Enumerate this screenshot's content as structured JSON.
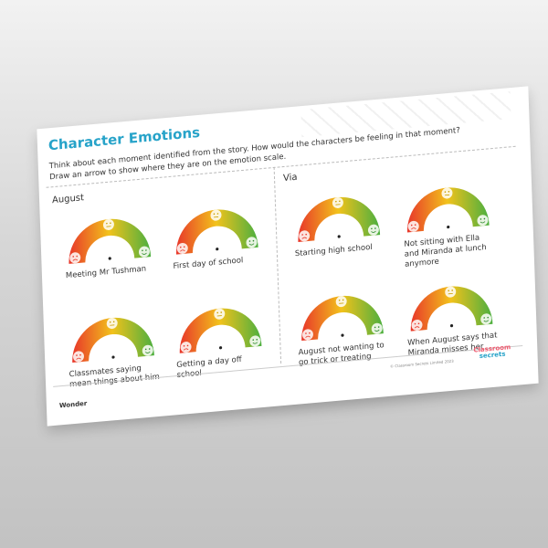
{
  "title": "Character Emotions",
  "instructions": "Think about each moment identified from the story. How would the characters be feeling in that moment? Draw an arrow to show where they are on the emotion scale.",
  "sections": [
    {
      "name": "August",
      "moments": [
        "Meeting Mr Tushman",
        "First day of school",
        "Classmates saying mean things about him",
        "Getting a day off school"
      ]
    },
    {
      "name": "Via",
      "moments": [
        "Starting high school",
        "Not sitting with Ella and Miranda at lunch anymore",
        "August not wanting to go trick or treating",
        "When August says that Miranda misses her"
      ]
    }
  ],
  "footer": "Wonder",
  "copyright": "© Classroom Secrets Limited 2023",
  "logo": {
    "line1": "Classroom",
    "line2": "secrets"
  },
  "colors": {
    "title": "#27a3c9",
    "sad": "#e8352a",
    "neutral": "#f2c21b",
    "happy": "#4caf3f"
  }
}
